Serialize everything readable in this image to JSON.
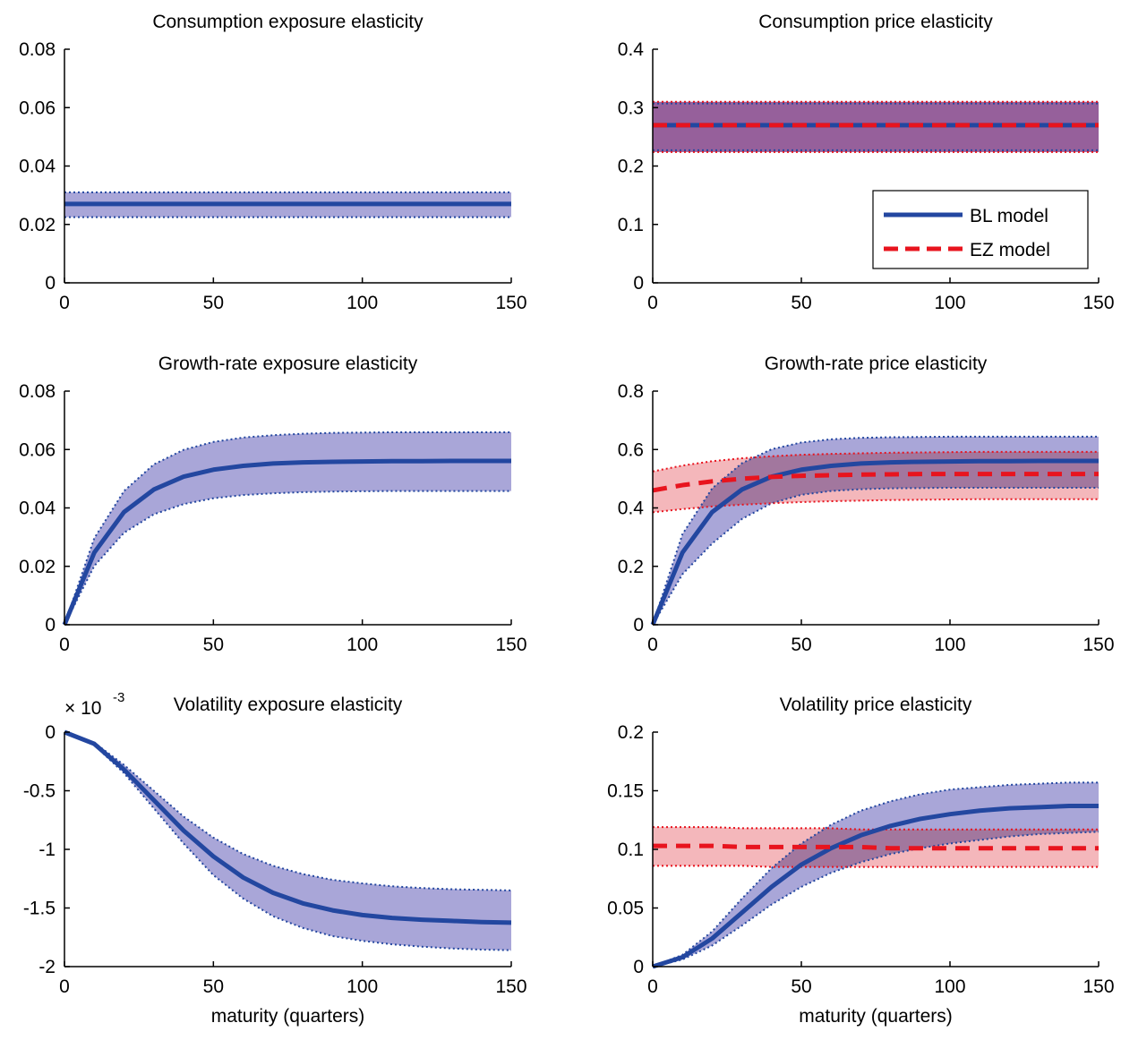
{
  "figure": {
    "xlabel": "maturity (quarters)",
    "legend": {
      "placement": "bottom-right of panel 2",
      "entries": [
        "BL model",
        "EZ model"
      ]
    }
  },
  "colors": {
    "bl_line": "#2347a0",
    "bl_band": "#a9a6d8",
    "ez_line": "#e8141e",
    "ez_band": "#f4b7bb",
    "overlap_band": "#96609b"
  },
  "chart_data": [
    {
      "type": "line",
      "title": "Consumption exposure elasticity",
      "xlabel": "",
      "ylabel": "",
      "xlim": [
        0,
        150
      ],
      "ylim": [
        0,
        0.08
      ],
      "xticks": [
        "0",
        "50",
        "100",
        "150"
      ],
      "yticks": [
        "0",
        "0.02",
        "0.04",
        "0.06",
        "0.08"
      ],
      "exponent_label": "",
      "grid": false,
      "x": [
        0,
        10,
        20,
        30,
        40,
        50,
        60,
        70,
        80,
        90,
        100,
        110,
        120,
        130,
        140,
        150
      ],
      "series": [
        {
          "name": "BL model",
          "values": [
            0.027,
            0.027,
            0.027,
            0.027,
            0.027,
            0.027,
            0.027,
            0.027,
            0.027,
            0.027,
            0.027,
            0.027,
            0.027,
            0.027,
            0.027,
            0.027
          ],
          "lower": [
            0.0225,
            0.0225,
            0.0225,
            0.0225,
            0.0225,
            0.0225,
            0.0225,
            0.0225,
            0.0225,
            0.0225,
            0.0225,
            0.0225,
            0.0225,
            0.0225,
            0.0225,
            0.0225
          ],
          "upper": [
            0.031,
            0.031,
            0.031,
            0.031,
            0.031,
            0.031,
            0.031,
            0.031,
            0.031,
            0.031,
            0.031,
            0.031,
            0.031,
            0.031,
            0.031,
            0.031
          ]
        }
      ]
    },
    {
      "type": "line",
      "title": "Consumption price elasticity",
      "xlabel": "",
      "ylabel": "",
      "xlim": [
        0,
        150
      ],
      "ylim": [
        0,
        0.4
      ],
      "xticks": [
        "0",
        "50",
        "100",
        "150"
      ],
      "yticks": [
        "0",
        "0.1",
        "0.2",
        "0.3",
        "0.4"
      ],
      "exponent_label": "",
      "grid": false,
      "legend": "bottom-right",
      "x": [
        0,
        10,
        20,
        30,
        40,
        50,
        60,
        70,
        80,
        90,
        100,
        110,
        120,
        130,
        140,
        150
      ],
      "series": [
        {
          "name": "BL model",
          "values": [
            0.27,
            0.27,
            0.27,
            0.27,
            0.27,
            0.27,
            0.27,
            0.27,
            0.27,
            0.27,
            0.27,
            0.27,
            0.27,
            0.27,
            0.27,
            0.27
          ],
          "lower": [
            0.227,
            0.227,
            0.227,
            0.227,
            0.227,
            0.227,
            0.227,
            0.227,
            0.227,
            0.227,
            0.227,
            0.227,
            0.227,
            0.227,
            0.227,
            0.227
          ],
          "upper": [
            0.307,
            0.307,
            0.307,
            0.307,
            0.307,
            0.307,
            0.307,
            0.307,
            0.307,
            0.307,
            0.307,
            0.307,
            0.307,
            0.307,
            0.307,
            0.307
          ]
        },
        {
          "name": "EZ model",
          "values": [
            0.27,
            0.27,
            0.27,
            0.27,
            0.27,
            0.27,
            0.27,
            0.27,
            0.27,
            0.27,
            0.27,
            0.27,
            0.27,
            0.27,
            0.27,
            0.27
          ],
          "lower": [
            0.224,
            0.224,
            0.224,
            0.224,
            0.224,
            0.224,
            0.224,
            0.224,
            0.224,
            0.224,
            0.224,
            0.224,
            0.224,
            0.224,
            0.224,
            0.224
          ],
          "upper": [
            0.31,
            0.31,
            0.31,
            0.31,
            0.31,
            0.31,
            0.31,
            0.31,
            0.31,
            0.31,
            0.31,
            0.31,
            0.31,
            0.31,
            0.31,
            0.31
          ]
        }
      ]
    },
    {
      "type": "line",
      "title": "Growth-rate exposure elasticity",
      "xlabel": "",
      "ylabel": "",
      "xlim": [
        0,
        150
      ],
      "ylim": [
        0,
        0.08
      ],
      "xticks": [
        "0",
        "50",
        "100",
        "150"
      ],
      "yticks": [
        "0",
        "0.02",
        "0.04",
        "0.06",
        "0.08"
      ],
      "exponent_label": "",
      "grid": false,
      "x": [
        0,
        10,
        20,
        30,
        40,
        50,
        60,
        70,
        80,
        90,
        100,
        110,
        120,
        130,
        140,
        150
      ],
      "series": [
        {
          "name": "BL model",
          "values": [
            0,
            0.0247,
            0.0386,
            0.0463,
            0.0507,
            0.0531,
            0.0544,
            0.0552,
            0.0556,
            0.0558,
            0.0559,
            0.056,
            0.056,
            0.0561,
            0.0561,
            0.0561
          ],
          "lower": [
            0,
            0.0201,
            0.0315,
            0.0378,
            0.0413,
            0.0433,
            0.0444,
            0.045,
            0.0454,
            0.0456,
            0.0457,
            0.0458,
            0.0458,
            0.0458,
            0.0458,
            0.0458
          ],
          "upper": [
            0,
            0.0296,
            0.0458,
            0.0549,
            0.0599,
            0.0626,
            0.0641,
            0.0649,
            0.0654,
            0.0657,
            0.0658,
            0.0659,
            0.0659,
            0.0659,
            0.0659,
            0.0659
          ]
        }
      ]
    },
    {
      "type": "line",
      "title": "Growth-rate price elasticity",
      "xlabel": "",
      "ylabel": "",
      "xlim": [
        0,
        150
      ],
      "ylim": [
        0,
        0.8
      ],
      "xticks": [
        "0",
        "50",
        "100",
        "150"
      ],
      "yticks": [
        "0",
        "0.2",
        "0.4",
        "0.6",
        "0.8"
      ],
      "exponent_label": "",
      "grid": false,
      "x": [
        0,
        10,
        20,
        30,
        40,
        50,
        60,
        70,
        80,
        90,
        100,
        110,
        120,
        130,
        140,
        150
      ],
      "series": [
        {
          "name": "BL model",
          "values": [
            0,
            0.247,
            0.386,
            0.463,
            0.507,
            0.531,
            0.544,
            0.552,
            0.556,
            0.558,
            0.559,
            0.56,
            0.56,
            0.561,
            0.561,
            0.561
          ],
          "lower": [
            0,
            0.173,
            0.278,
            0.362,
            0.416,
            0.445,
            0.458,
            0.464,
            0.467,
            0.468,
            0.469,
            0.469,
            0.469,
            0.469,
            0.469,
            0.469
          ],
          "upper": [
            0,
            0.31,
            0.467,
            0.553,
            0.601,
            0.624,
            0.635,
            0.64,
            0.642,
            0.643,
            0.644,
            0.644,
            0.644,
            0.644,
            0.644,
            0.644
          ]
        },
        {
          "name": "EZ model",
          "values": [
            0.46,
            0.478,
            0.491,
            0.5,
            0.506,
            0.51,
            0.512,
            0.514,
            0.515,
            0.516,
            0.516,
            0.516,
            0.516,
            0.516,
            0.516,
            0.516
          ],
          "lower": [
            0.385,
            0.396,
            0.405,
            0.411,
            0.416,
            0.42,
            0.423,
            0.425,
            0.427,
            0.428,
            0.429,
            0.43,
            0.43,
            0.43,
            0.43,
            0.43
          ],
          "upper": [
            0.525,
            0.545,
            0.56,
            0.57,
            0.577,
            0.582,
            0.585,
            0.587,
            0.589,
            0.59,
            0.591,
            0.592,
            0.592,
            0.592,
            0.592,
            0.592
          ]
        }
      ]
    },
    {
      "type": "line",
      "title": "Volatility exposure elasticity",
      "xlabel": "maturity (quarters)",
      "ylabel": "",
      "xlim": [
        0,
        150
      ],
      "ylim": [
        -2,
        0
      ],
      "xticks": [
        "0",
        "50",
        "100",
        "150"
      ],
      "yticks": [
        "-2",
        "-1.5",
        "-1",
        "-0.5",
        "0"
      ],
      "exponent_label": "× 10",
      "exponent_power": "-3",
      "grid": false,
      "x": [
        0,
        10,
        20,
        30,
        40,
        50,
        60,
        70,
        80,
        90,
        100,
        110,
        120,
        130,
        140,
        150
      ],
      "series": [
        {
          "name": "BL model",
          "values": [
            0,
            -0.1,
            -0.32,
            -0.58,
            -0.84,
            -1.06,
            -1.24,
            -1.37,
            -1.46,
            -1.52,
            -1.56,
            -1.585,
            -1.6,
            -1.61,
            -1.62,
            -1.625
          ],
          "lower": [
            0,
            -0.11,
            -0.35,
            -0.65,
            -0.95,
            -1.22,
            -1.42,
            -1.57,
            -1.67,
            -1.74,
            -1.78,
            -1.81,
            -1.83,
            -1.845,
            -1.855,
            -1.86
          ],
          "upper": [
            0,
            -0.09,
            -0.28,
            -0.5,
            -0.72,
            -0.9,
            -1.04,
            -1.14,
            -1.21,
            -1.26,
            -1.29,
            -1.315,
            -1.33,
            -1.34,
            -1.345,
            -1.35
          ]
        }
      ]
    },
    {
      "type": "line",
      "title": "Volatility price elasticity",
      "xlabel": "maturity (quarters)",
      "ylabel": "",
      "xlim": [
        0,
        150
      ],
      "ylim": [
        0,
        0.2
      ],
      "xticks": [
        "0",
        "50",
        "100",
        "150"
      ],
      "yticks": [
        "0",
        "0.05",
        "0.1",
        "0.15",
        "0.2"
      ],
      "exponent_label": "",
      "grid": false,
      "x": [
        0,
        10,
        20,
        30,
        40,
        50,
        60,
        70,
        80,
        90,
        100,
        110,
        120,
        130,
        140,
        150
      ],
      "series": [
        {
          "name": "BL model",
          "values": [
            0,
            0.008,
            0.024,
            0.046,
            0.068,
            0.087,
            0.101,
            0.112,
            0.12,
            0.126,
            0.13,
            0.133,
            0.135,
            0.136,
            0.137,
            0.137
          ],
          "lower": [
            0,
            0.006,
            0.018,
            0.035,
            0.053,
            0.068,
            0.08,
            0.089,
            0.096,
            0.101,
            0.105,
            0.108,
            0.111,
            0.113,
            0.114,
            0.115
          ],
          "upper": [
            0,
            0.01,
            0.03,
            0.058,
            0.084,
            0.105,
            0.121,
            0.133,
            0.141,
            0.147,
            0.151,
            0.153,
            0.155,
            0.156,
            0.157,
            0.157
          ]
        },
        {
          "name": "EZ model",
          "values": [
            0.103,
            0.103,
            0.103,
            0.102,
            0.102,
            0.102,
            0.102,
            0.102,
            0.101,
            0.101,
            0.101,
            0.101,
            0.101,
            0.101,
            0.101,
            0.101
          ],
          "lower": [
            0.086,
            0.086,
            0.086,
            0.086,
            0.085,
            0.085,
            0.085,
            0.085,
            0.085,
            0.085,
            0.085,
            0.085,
            0.085,
            0.085,
            0.085,
            0.085
          ],
          "upper": [
            0.119,
            0.119,
            0.119,
            0.118,
            0.118,
            0.118,
            0.118,
            0.117,
            0.117,
            0.117,
            0.117,
            0.117,
            0.117,
            0.117,
            0.117,
            0.117
          ]
        }
      ]
    }
  ]
}
